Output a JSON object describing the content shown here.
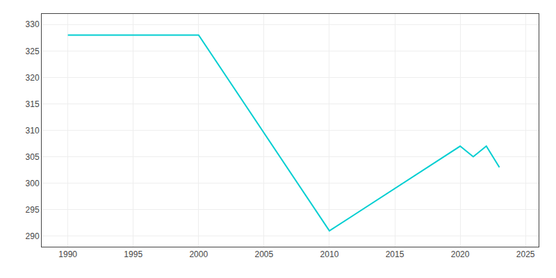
{
  "chart_data": {
    "type": "line",
    "x": [
      1990,
      2000,
      2010,
      2020,
      2021,
      2022,
      2023
    ],
    "values": [
      328,
      328,
      291,
      307,
      305,
      307,
      303
    ],
    "color": "#00CED1",
    "xlim": [
      1988,
      2026
    ],
    "ylim": [
      288,
      332
    ],
    "xticks": [
      1990,
      1995,
      2000,
      2005,
      2010,
      2015,
      2020,
      2025
    ],
    "yticks": [
      290,
      295,
      300,
      305,
      310,
      315,
      320,
      325,
      330
    ],
    "grid": true
  }
}
